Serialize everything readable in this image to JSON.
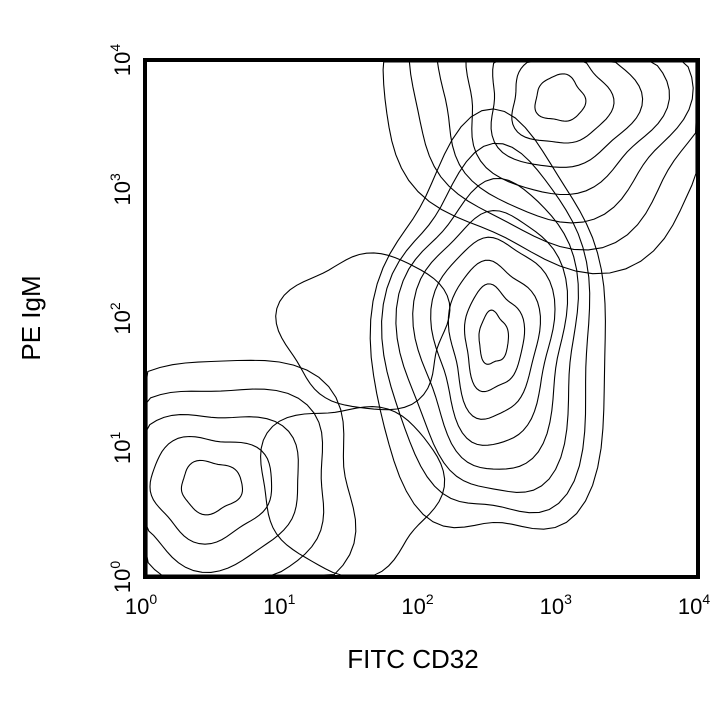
{
  "chart_data": {
    "type": "contour",
    "xlabel": "FITC CD32",
    "ylabel": "PE IgM",
    "xscale": "log",
    "yscale": "log",
    "xlim": [
      1,
      10000
    ],
    "ylim": [
      1,
      10000
    ],
    "x_ticks": [
      {
        "base": "10",
        "exp": "0"
      },
      {
        "base": "10",
        "exp": "1"
      },
      {
        "base": "10",
        "exp": "2"
      },
      {
        "base": "10",
        "exp": "3"
      },
      {
        "base": "10",
        "exp": "4"
      }
    ],
    "y_ticks": [
      {
        "base": "10",
        "exp": "0"
      },
      {
        "base": "10",
        "exp": "1"
      },
      {
        "base": "10",
        "exp": "2"
      },
      {
        "base": "10",
        "exp": "3"
      },
      {
        "base": "10",
        "exp": "4"
      }
    ],
    "grid": false,
    "legend": false,
    "line_color": "#000000",
    "populations": [
      {
        "center": [
          1000,
          5000
        ],
        "spread": [
          2.5,
          2.5
        ],
        "levels": 7
      },
      {
        "center": [
          330,
          70
        ],
        "spread": [
          1.7,
          3.2
        ],
        "levels": 8
      },
      {
        "center": [
          3,
          5
        ],
        "spread": [
          2.2,
          2.0
        ],
        "levels": 5
      },
      {
        "center": [
          30,
          5
        ],
        "spread": [
          1.3,
          1.3
        ],
        "levels": 1
      },
      {
        "center": [
          40,
          80
        ],
        "spread": [
          1.2,
          1.2
        ],
        "levels": 1
      }
    ]
  }
}
